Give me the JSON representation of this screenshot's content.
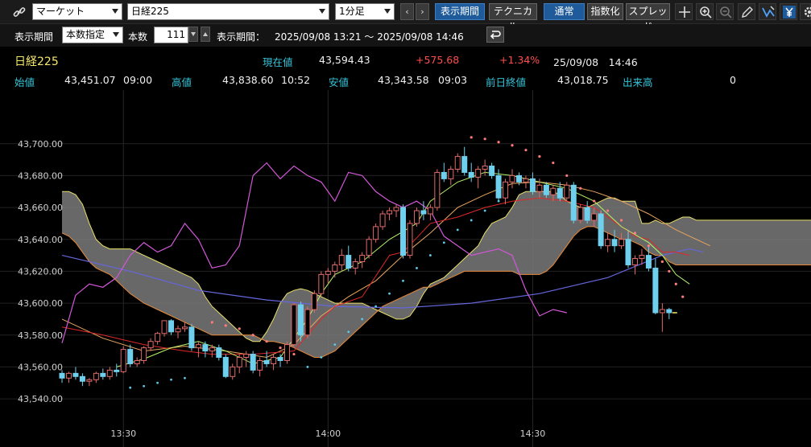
{
  "toolbar": {
    "market_select": "マーケット",
    "symbol_select": "日経225",
    "interval_select": "1分足",
    "prev_label": "‹",
    "next_label": "›",
    "period_button": "表示期間",
    "technical_button": "テクニカル",
    "normal_button": "通常",
    "index_button": "指数化",
    "spread_button": "スプレッド",
    "icons": [
      "link-icon",
      "crosshair-icon",
      "zoom-in-icon",
      "zoom-out-icon",
      "pencil-icon",
      "fan-icon",
      "yen-icon",
      "gear-icon"
    ]
  },
  "period_bar": {
    "period_label": "表示期間",
    "period_mode": "本数指定",
    "count_label": "本数",
    "count_value": "111",
    "range_label": "表示期間：",
    "range_value": "2025/09/08 13:21 ～ 2025/09/08 14:46"
  },
  "quote": {
    "name": "日経225",
    "current_label": "現在値",
    "current_value": "43,594.43",
    "change": "+575.68",
    "change_pct": "+1.34%",
    "datetime": "25/09/08　14:46",
    "open_label": "始値",
    "open_value": "43,451.07",
    "open_time": "09:00",
    "high_label": "高値",
    "high_value": "43,838.60",
    "high_time": "10:52",
    "low_label": "安値",
    "low_value": "43,343.58",
    "low_time": "09:03",
    "prev_close_label": "前日終値",
    "prev_close_value": "43,018.75",
    "volume_label": "出来高",
    "volume_value": "0"
  },
  "colors": {
    "candle_up": "#000000",
    "candle_down": "#6fd0ee",
    "cloud": "#7a7a7a",
    "psar": "#ff7b7b",
    "psar_low": "#5ec8e8",
    "ma_short": "#b6f56a",
    "ma_mid": "#e8a55e",
    "ma_long": "#6666dd",
    "line_red": "#e02828",
    "oscillator": "#d357d8"
  },
  "chart_data": {
    "type": "candlestick",
    "ylim": [
      43535,
      43715
    ],
    "y_ticks": [
      "43,540.00",
      "43,560.00",
      "43,580.00",
      "43,600.00",
      "43,620.00",
      "43,640.00",
      "43,660.00",
      "43,680.00",
      "43,700.00"
    ],
    "y_tick_values": [
      43540,
      43560,
      43580,
      43600,
      43620,
      43640,
      43660,
      43680,
      43700
    ],
    "x_ticks": [
      "13:30",
      "14:00",
      "14:30"
    ],
    "x_tick_index": [
      9,
      39,
      69
    ],
    "bar_count": 111,
    "candles_ohlc": [
      [
        43556,
        43558,
        43550,
        43553
      ],
      [
        43553,
        43557,
        43550,
        43556
      ],
      [
        43556,
        43560,
        43552,
        43554
      ],
      [
        43554,
        43556,
        43548,
        43551
      ],
      [
        43551,
        43553,
        43548,
        43552
      ],
      [
        43552,
        43557,
        43550,
        43556
      ],
      [
        43556,
        43559,
        43552,
        43554
      ],
      [
        43554,
        43560,
        43552,
        43558
      ],
      [
        43558,
        43562,
        43554,
        43557
      ],
      [
        43557,
        43573,
        43556,
        43571
      ],
      [
        43571,
        43574,
        43560,
        43562
      ],
      [
        43562,
        43566,
        43560,
        43564
      ],
      [
        43564,
        43573,
        43562,
        43572
      ],
      [
        43572,
        43578,
        43570,
        43576
      ],
      [
        43576,
        43582,
        43574,
        43581
      ],
      [
        43581,
        43588,
        43579,
        43589
      ],
      [
        43589,
        43590,
        43580,
        43582
      ],
      [
        43582,
        43586,
        43578,
        43584
      ],
      [
        43584,
        43588,
        43582,
        43585
      ],
      [
        43585,
        43587,
        43570,
        43572
      ],
      [
        43572,
        43576,
        43566,
        43574
      ],
      [
        43574,
        43576,
        43566,
        43570
      ],
      [
        43570,
        43574,
        43566,
        43572
      ],
      [
        43572,
        43574,
        43564,
        43566
      ],
      [
        43566,
        43568,
        43553,
        43554
      ],
      [
        43554,
        43562,
        43552,
        43560
      ],
      [
        43560,
        43568,
        43556,
        43566
      ],
      [
        43566,
        43570,
        43560,
        43568
      ],
      [
        43568,
        43570,
        43556,
        43558
      ],
      [
        43558,
        43566,
        43554,
        43564
      ],
      [
        43564,
        43570,
        43560,
        43562
      ],
      [
        43562,
        43568,
        43558,
        43566
      ],
      [
        43566,
        43568,
        43560,
        43564
      ],
      [
        43564,
        43576,
        43562,
        43574
      ],
      [
        43574,
        43600,
        43572,
        43599
      ],
      [
        43599,
        43601,
        43576,
        43580
      ],
      [
        43580,
        43598,
        43578,
        43596
      ],
      [
        43596,
        43608,
        43594,
        43606
      ],
      [
        43606,
        43620,
        43604,
        43618
      ],
      [
        43618,
        43622,
        43612,
        43620
      ],
      [
        43620,
        43626,
        43616,
        43624
      ],
      [
        43624,
        43634,
        43620,
        43630
      ],
      [
        43630,
        43636,
        43620,
        43622
      ],
      [
        43622,
        43628,
        43618,
        43626
      ],
      [
        43626,
        43632,
        43622,
        43630
      ],
      [
        43630,
        43642,
        43628,
        43640
      ],
      [
        43640,
        43650,
        43638,
        43648
      ],
      [
        43648,
        43658,
        43646,
        43656
      ],
      [
        43656,
        43660,
        43652,
        43658
      ],
      [
        43658,
        43662,
        43654,
        43660
      ],
      [
        43660,
        43662,
        43628,
        43630
      ],
      [
        43630,
        43652,
        43628,
        43650
      ],
      [
        43650,
        43660,
        43648,
        43658
      ],
      [
        43658,
        43664,
        43652,
        43656
      ],
      [
        43656,
        43662,
        43652,
        43660
      ],
      [
        43660,
        43684,
        43658,
        43682
      ],
      [
        43682,
        43688,
        43676,
        43678
      ],
      [
        43678,
        43686,
        43674,
        43684
      ],
      [
        43684,
        43694,
        43682,
        43692
      ],
      [
        43692,
        43698,
        43680,
        43682
      ],
      [
        43682,
        43688,
        43676,
        43679
      ],
      [
        43679,
        43686,
        43672,
        43684
      ],
      [
        43684,
        43690,
        43680,
        43686
      ],
      [
        43686,
        43688,
        43678,
        43680
      ],
      [
        43680,
        43684,
        43664,
        43666
      ],
      [
        43666,
        43678,
        43662,
        43676
      ],
      [
        43676,
        43684,
        43672,
        43680
      ],
      [
        43680,
        43682,
        43674,
        43676
      ],
      [
        43676,
        43680,
        43672,
        43678
      ],
      [
        43678,
        43682,
        43668,
        43670
      ],
      [
        43670,
        43678,
        43666,
        43674
      ],
      [
        43674,
        43676,
        43666,
        43668
      ],
      [
        43668,
        43674,
        43664,
        43672
      ],
      [
        43672,
        43676,
        43664,
        43666
      ],
      [
        43666,
        43676,
        43664,
        43674
      ],
      [
        43674,
        43676,
        43650,
        43652
      ],
      [
        43652,
        43662,
        43650,
        43660
      ],
      [
        43660,
        43664,
        43650,
        43652
      ],
      [
        43652,
        43660,
        43648,
        43656
      ],
      [
        43656,
        43658,
        43634,
        43636
      ],
      [
        43636,
        43644,
        43632,
        43640
      ],
      [
        43640,
        43646,
        43632,
        43636
      ],
      [
        43636,
        43644,
        43634,
        43640
      ],
      [
        43640,
        43646,
        43622,
        43624
      ],
      [
        43624,
        43630,
        43618,
        43628
      ],
      [
        43628,
        43634,
        43624,
        43630
      ],
      [
        43630,
        43636,
        43620,
        43622
      ],
      [
        43622,
        43628,
        43593,
        43594
      ],
      [
        43594,
        43600,
        43582,
        43596
      ],
      [
        43596,
        43597,
        43590,
        43594
      ]
    ],
    "ichimoku_cloud_upper": [
      43670,
      43670,
      43668,
      43662,
      43650,
      43640,
      43636,
      43634,
      43634,
      43634,
      43634,
      43632,
      43630,
      43628,
      43626,
      43624,
      43622,
      43620,
      43618,
      43616,
      43612,
      43604,
      43598,
      43594,
      43590,
      43586,
      43582,
      43578,
      43576,
      43576,
      43582,
      43590,
      43600,
      43606,
      43608,
      43609,
      43608,
      43606,
      43604,
      43602,
      43600,
      43600,
      43600,
      43600,
      43600,
      43598,
      43596,
      43594,
      43592,
      43590,
      43590,
      43592,
      43598,
      43606,
      43612,
      43614,
      43616,
      43620,
      43624,
      43628,
      43632,
      43636,
      43644,
      43650,
      43652,
      43654,
      43660,
      43668,
      43670,
      43670,
      43670,
      43670,
      43670,
      43668,
      43664,
      43662,
      43660,
      43660,
      43662,
      43664,
      43666,
      43666,
      43664,
      43664,
      43664,
      43650,
      43650,
      43652,
      43650,
      43650,
      43652,
      43654,
      43654,
      43652,
      43652,
      43652,
      43652,
      43652,
      43652,
      43652,
      43652,
      43652,
      43652,
      43652,
      43652,
      43652,
      43652,
      43652,
      43652,
      43652,
      43652
    ],
    "ichimoku_cloud_lower": [
      43644,
      43642,
      43638,
      43632,
      43626,
      43622,
      43620,
      43618,
      43614,
      43610,
      43606,
      43603,
      43600,
      43598,
      43596,
      43594,
      43592,
      43590,
      43588,
      43586,
      43584,
      43582,
      43580,
      43580,
      43580,
      43580,
      43580,
      43580,
      43580,
      43578,
      43576,
      43576,
      43575,
      43574,
      43572,
      43570,
      43568,
      43566,
      43566,
      43568,
      43570,
      43574,
      43578,
      43582,
      43586,
      43590,
      43594,
      43598,
      43600,
      43602,
      43604,
      43606,
      43608,
      43610,
      43610,
      43612,
      43614,
      43616,
      43618,
      43620,
      43620,
      43620,
      43620,
      43620,
      43620,
      43620,
      43620,
      43618,
      43618,
      43618,
      43618,
      43620,
      43624,
      43630,
      43636,
      43642,
      43646,
      43648,
      43648,
      43646,
      43644,
      43642,
      43640,
      43640,
      43638,
      43636,
      43632,
      43630,
      43630,
      43626,
      43624,
      43624,
      43624,
      43624,
      43624,
      43624,
      43624,
      43624,
      43624,
      43624,
      43624,
      43624,
      43624,
      43624,
      43624,
      43624,
      43624,
      43624,
      43624,
      43624,
      43624
    ],
    "sar_above": [
      [
        22,
        43588
      ],
      [
        24,
        43586
      ],
      [
        26,
        43584
      ],
      [
        28,
        43580
      ],
      [
        30,
        43576
      ],
      [
        32,
        43572
      ],
      [
        34,
        43568
      ],
      [
        60,
        43704
      ],
      [
        62,
        43703
      ],
      [
        64,
        43701
      ],
      [
        66,
        43699
      ],
      [
        68,
        43696
      ],
      [
        70,
        43692
      ],
      [
        72,
        43688
      ],
      [
        74,
        43680
      ],
      [
        76,
        43672
      ],
      [
        78,
        43664
      ],
      [
        80,
        43658
      ],
      [
        82,
        43652
      ],
      [
        84,
        43644
      ],
      [
        86,
        43636
      ],
      [
        88,
        43626
      ],
      [
        89,
        43620
      ],
      [
        90,
        43612
      ],
      [
        91,
        43604
      ]
    ],
    "sar_below": [
      [
        10,
        43547
      ],
      [
        12,
        43548
      ],
      [
        14,
        43550
      ],
      [
        16,
        43552
      ],
      [
        18,
        43553
      ],
      [
        36,
        43560
      ],
      [
        38,
        43566
      ],
      [
        40,
        43574
      ],
      [
        42,
        43582
      ],
      [
        44,
        43590
      ],
      [
        46,
        43598
      ],
      [
        48,
        43606
      ],
      [
        50,
        43614
      ],
      [
        52,
        43622
      ],
      [
        54,
        43630
      ],
      [
        56,
        43638
      ],
      [
        58,
        43646
      ],
      [
        60,
        43652
      ],
      [
        62,
        43658
      ],
      [
        64,
        43664
      ]
    ],
    "ma_short": [
      [
        8,
        43560
      ],
      [
        12,
        43565
      ],
      [
        16,
        43572
      ],
      [
        20,
        43576
      ],
      [
        24,
        43570
      ],
      [
        28,
        43562
      ],
      [
        32,
        43566
      ],
      [
        36,
        43590
      ],
      [
        38,
        43606
      ],
      [
        40,
        43618
      ],
      [
        44,
        43626
      ],
      [
        48,
        43640
      ],
      [
        52,
        43650
      ],
      [
        54,
        43664
      ],
      [
        58,
        43676
      ],
      [
        62,
        43682
      ],
      [
        66,
        43680
      ],
      [
        70,
        43676
      ],
      [
        74,
        43672
      ],
      [
        78,
        43664
      ],
      [
        82,
        43648
      ],
      [
        86,
        43638
      ],
      [
        88,
        43630
      ],
      [
        90,
        43618
      ],
      [
        92,
        43612
      ]
    ],
    "ma_mid": [
      [
        0,
        43590
      ],
      [
        6,
        43578
      ],
      [
        12,
        43570
      ],
      [
        18,
        43573
      ],
      [
        24,
        43570
      ],
      [
        30,
        43566
      ],
      [
        34,
        43574
      ],
      [
        38,
        43592
      ],
      [
        42,
        43604
      ],
      [
        46,
        43614
      ],
      [
        50,
        43630
      ],
      [
        54,
        43644
      ],
      [
        58,
        43660
      ],
      [
        62,
        43668
      ],
      [
        66,
        43675
      ],
      [
        70,
        43676
      ],
      [
        74,
        43674
      ],
      [
        78,
        43670
      ],
      [
        82,
        43664
      ],
      [
        86,
        43656
      ],
      [
        90,
        43646
      ],
      [
        92,
        43642
      ],
      [
        95,
        43636
      ]
    ],
    "ma_long": [
      [
        0,
        43630
      ],
      [
        10,
        43620
      ],
      [
        20,
        43608
      ],
      [
        30,
        43602
      ],
      [
        40,
        43598
      ],
      [
        50,
        43597
      ],
      [
        60,
        43600
      ],
      [
        70,
        43606
      ],
      [
        80,
        43616
      ],
      [
        88,
        43630
      ],
      [
        92,
        43634
      ],
      [
        94,
        43632
      ]
    ],
    "red_line": [
      [
        0,
        43585
      ],
      [
        6,
        43580
      ],
      [
        12,
        43574
      ],
      [
        18,
        43570
      ],
      [
        22,
        43568
      ],
      [
        28,
        43568
      ],
      [
        34,
        43570
      ],
      [
        38,
        43590
      ],
      [
        40,
        43598
      ],
      [
        44,
        43604
      ],
      [
        48,
        43630
      ],
      [
        50,
        43632
      ],
      [
        54,
        43650
      ],
      [
        58,
        43654
      ],
      [
        62,
        43660
      ],
      [
        66,
        43664
      ],
      [
        70,
        43666
      ],
      [
        74,
        43664
      ],
      [
        78,
        43660
      ],
      [
        82,
        43648
      ],
      [
        84,
        43642
      ],
      [
        86,
        43640
      ],
      [
        88,
        43632
      ],
      [
        90,
        43632
      ],
      [
        92,
        43630
      ]
    ],
    "oscillator": [
      [
        0,
        43575
      ],
      [
        2,
        43605
      ],
      [
        4,
        43612
      ],
      [
        6,
        43610
      ],
      [
        8,
        43616
      ],
      [
        10,
        43630
      ],
      [
        12,
        43638
      ],
      [
        14,
        43632
      ],
      [
        16,
        43636
      ],
      [
        18,
        43650
      ],
      [
        20,
        43640
      ],
      [
        22,
        43622
      ],
      [
        24,
        43624
      ],
      [
        26,
        43636
      ],
      [
        28,
        43680
      ],
      [
        30,
        43688
      ],
      [
        32,
        43678
      ],
      [
        34,
        43686
      ],
      [
        36,
        43680
      ],
      [
        38,
        43676
      ],
      [
        40,
        43664
      ],
      [
        42,
        43682
      ],
      [
        44,
        43680
      ],
      [
        46,
        43670
      ],
      [
        48,
        43664
      ],
      [
        50,
        43660
      ],
      [
        52,
        43664
      ],
      [
        54,
        43658
      ],
      [
        56,
        43642
      ],
      [
        58,
        43636
      ],
      [
        60,
        43630
      ],
      [
        62,
        43632
      ],
      [
        64,
        43634
      ],
      [
        66,
        43630
      ],
      [
        68,
        43608
      ],
      [
        70,
        43592
      ],
      [
        72,
        43596
      ],
      [
        74,
        43594
      ]
    ]
  }
}
